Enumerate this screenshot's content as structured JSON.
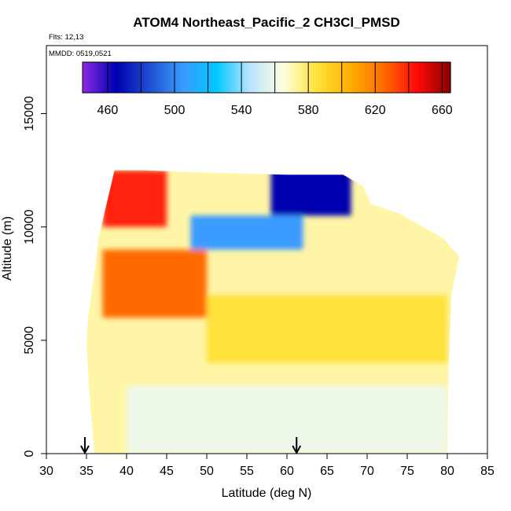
{
  "chart_data": {
    "type": "heatmap",
    "title": "ATOM4 Northeast_Pacific_2 CH3Cl_PMSD",
    "flights_label": "Flts: 12,13",
    "date_label": "MMDD: 0519,0521",
    "xlabel": "Latitude (deg N)",
    "ylabel": "Altitude (m)",
    "xlim": [
      30,
      85
    ],
    "ylim": [
      0,
      18000
    ],
    "x_ticks": [
      "30",
      "35",
      "40",
      "45",
      "50",
      "55",
      "60",
      "65",
      "70",
      "75",
      "80",
      "85"
    ],
    "y_ticks": [
      "0",
      "5000",
      "10000",
      "15000"
    ],
    "colorbar": {
      "range": [
        445,
        665
      ],
      "tick_values": [
        460,
        500,
        540,
        580,
        620,
        660
      ],
      "tick_labels": [
        "460",
        "500",
        "540",
        "580",
        "620",
        "660"
      ],
      "colors": [
        "#8a2be2",
        "#0000b0",
        "#1f4fd0",
        "#3a9bff",
        "#00c8ff",
        "#b8e4ff",
        "#ffffe0",
        "#ffe23a",
        "#ffb000",
        "#ff6a00",
        "#ff0a0a",
        "#8b0000"
      ]
    },
    "markers": [
      {
        "label": "profile arrow 1",
        "latitude": 34.8
      },
      {
        "label": "profile arrow 2",
        "latitude": 61.2
      }
    ],
    "shape": {
      "top_boundary": [
        [
          37,
          12500
        ],
        [
          42,
          12500
        ],
        [
          50,
          12400
        ],
        [
          60,
          12300
        ],
        [
          67,
          12300
        ],
        [
          69.5,
          11800
        ],
        [
          70.5,
          11000
        ],
        [
          74,
          10600
        ],
        [
          77,
          10000
        ],
        [
          79.5,
          9500
        ],
        [
          81.5,
          8700
        ]
      ],
      "left_boundary": [
        [
          12500,
          38.5
        ],
        [
          11000,
          37.5
        ],
        [
          9500,
          36.5
        ],
        [
          8000,
          36.0
        ],
        [
          6000,
          35.2
        ],
        [
          4800,
          35.0
        ],
        [
          3000,
          35.3
        ],
        [
          2000,
          35.5
        ],
        [
          0,
          36.0
        ]
      ],
      "right_boundary": [
        [
          8700,
          81.5
        ],
        [
          7000,
          80.5
        ],
        [
          4000,
          80.2
        ],
        [
          1000,
          80.0
        ],
        [
          0,
          80.0
        ]
      ]
    },
    "field_description": [
      {
        "altitude_range": [
          10000,
          12500
        ],
        "latitude_range": [
          37,
          45
        ],
        "value": 640
      },
      {
        "altitude_range": [
          10500,
          12500
        ],
        "latitude_range": [
          58,
          68
        ],
        "value": 465
      },
      {
        "altitude_range": [
          9000,
          10500
        ],
        "latitude_range": [
          48,
          62
        ],
        "value": 505
      },
      {
        "altitude_range": [
          6000,
          9000
        ],
        "latitude_range": [
          37,
          50
        ],
        "value": 625
      },
      {
        "altitude_range": [
          4000,
          7000
        ],
        "latitude_range": [
          50,
          80
        ],
        "value": 585
      },
      {
        "altitude_range": [
          0,
          3000
        ],
        "latitude_range": [
          40,
          80
        ],
        "value": 560
      }
    ]
  }
}
